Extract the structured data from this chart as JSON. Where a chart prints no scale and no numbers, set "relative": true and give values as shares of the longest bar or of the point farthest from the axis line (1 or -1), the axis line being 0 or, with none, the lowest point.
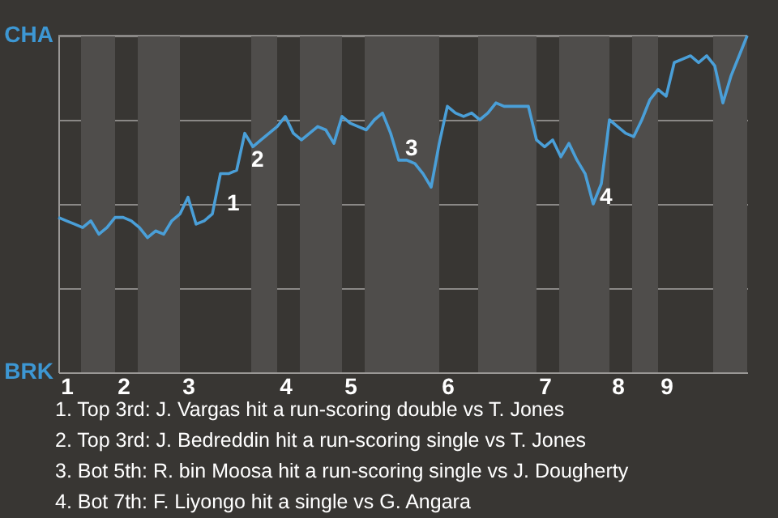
{
  "chart_data": {
    "type": "line",
    "relative": true,
    "categories": [
      null,
      "1",
      null,
      null,
      null,
      null,
      null,
      null,
      "2",
      null,
      null,
      null,
      null,
      null,
      null,
      null,
      "3",
      null,
      null,
      null,
      null,
      null,
      null,
      null,
      null,
      null,
      null,
      null,
      "4",
      null,
      null,
      null,
      null,
      null,
      null,
      null,
      "5",
      null,
      null,
      null,
      null,
      null,
      null,
      null,
      null,
      null,
      null,
      null,
      "6",
      null,
      null,
      null,
      null,
      null,
      null,
      null,
      null,
      null,
      null,
      null,
      "7",
      null,
      null,
      null,
      null,
      null,
      null,
      null,
      null,
      "8",
      null,
      null,
      null,
      null,
      null,
      "9",
      null,
      null,
      null,
      null,
      null,
      null,
      null,
      null,
      null,
      null
    ],
    "series": [
      {
        "color": "#4a9fd8",
        "values": [
          0.46,
          0.45,
          0.44,
          0.43,
          0.45,
          0.41,
          0.43,
          0.46,
          0.46,
          0.45,
          0.43,
          0.4,
          0.42,
          0.41,
          0.45,
          0.47,
          0.52,
          0.44,
          0.45,
          0.47,
          0.59,
          0.59,
          0.6,
          0.71,
          0.67,
          0.69,
          0.71,
          0.73,
          0.76,
          0.71,
          0.69,
          0.71,
          0.73,
          0.72,
          0.68,
          0.76,
          0.74,
          0.73,
          0.72,
          0.75,
          0.77,
          0.71,
          0.63,
          0.63,
          0.62,
          0.59,
          0.55,
          0.68,
          0.79,
          0.77,
          0.76,
          0.77,
          0.75,
          0.77,
          0.8,
          0.79,
          0.79,
          0.79,
          0.79,
          0.69,
          0.67,
          0.69,
          0.64,
          0.68,
          0.63,
          0.59,
          0.5,
          0.56,
          0.75,
          0.73,
          0.71,
          0.7,
          0.75,
          0.81,
          0.84,
          0.82,
          0.92,
          0.93,
          0.94,
          0.92,
          0.94,
          0.91,
          0.8,
          0.88,
          0.94,
          1.0
        ]
      }
    ],
    "grid": "y",
    "marker": "none",
    "line_style": "solid",
    "annotations": [
      "CHA",
      "BRK",
      "1",
      "2",
      "3",
      "4",
      "1. Top 3rd: J. Vargas hit a run-scoring double vs T. Jones",
      "2. Top 3rd: J. Bedreddin hit a run-scoring single vs T. Jones",
      "3. Bot 5th: R. bin Moosa hit a run-scoring single vs J. Dougherty",
      "4. Bot 7th: F. Liyongo hit a single vs G. Angara"
    ]
  }
}
